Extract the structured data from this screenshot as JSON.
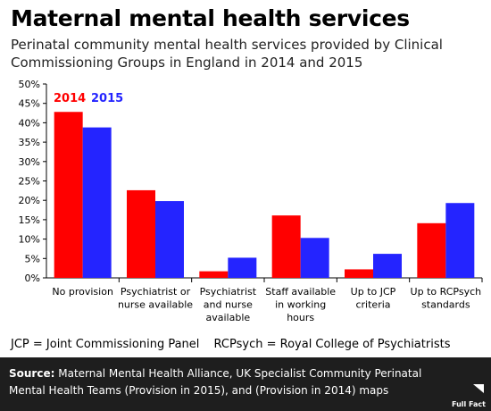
{
  "title": "Maternal mental health services",
  "subtitle": "Perinatal community mental health services provided by Clinical Commissioning Groups in England in 2014 and 2015",
  "footnote": {
    "jcp": "JCP = Joint Commissioning Panel",
    "rcpsych": "RCPsych = Royal College of Psychiatrists"
  },
  "source": {
    "label": "Source:",
    "text": "Maternal Mental Health Alliance, UK Specialist Community Perinatal Mental Health Teams (Provision in 2015), and (Provision in 2014) maps"
  },
  "brand": {
    "name": "Full Fact"
  },
  "colors": {
    "series_2014": "#ff0000",
    "series_2015": "#2424ff",
    "axis": "#000000"
  },
  "chart_data": {
    "type": "bar",
    "categories": [
      [
        "No provision"
      ],
      [
        "Psychiatrist or",
        "nurse available"
      ],
      [
        "Psychiatrist",
        "and nurse",
        "available"
      ],
      [
        "Staff available",
        "in working",
        "hours"
      ],
      [
        "Up to JCP",
        "criteria"
      ],
      [
        "Up to RCPsych",
        "standards"
      ]
    ],
    "series": [
      {
        "name": "2014",
        "values": [
          42.8,
          22.6,
          1.7,
          16.1,
          2.2,
          14.1
        ]
      },
      {
        "name": "2015",
        "values": [
          38.8,
          19.8,
          5.2,
          10.3,
          6.2,
          19.3
        ]
      }
    ],
    "ylim": [
      0,
      50
    ],
    "yticks": [
      "0%",
      "5%",
      "10%",
      "15%",
      "20%",
      "25%",
      "30%",
      "35%",
      "40%",
      "45%",
      "50%"
    ],
    "ytick_step": 5,
    "legend": "top-left",
    "grid": false
  }
}
